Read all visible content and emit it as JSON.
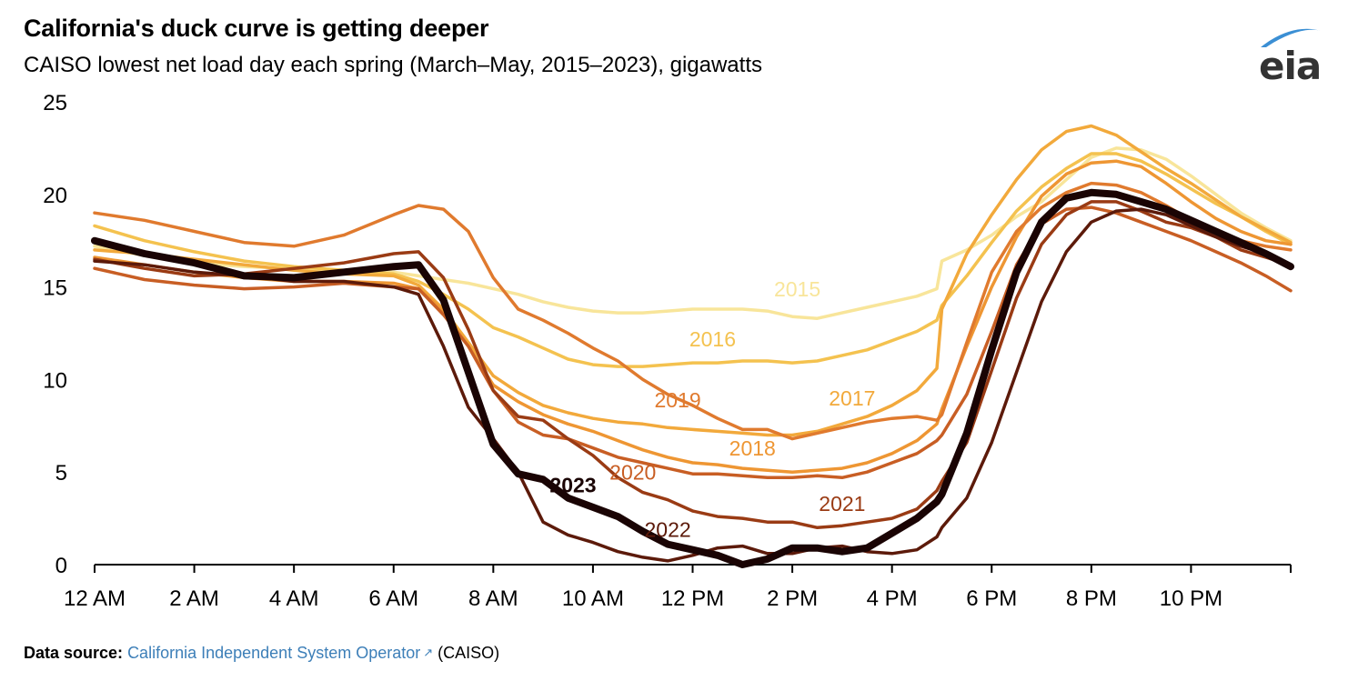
{
  "header": {
    "title": "California's duck curve is getting deeper",
    "subtitle": "CAISO lowest net load day each spring (March–May, 2015–2023), gigawatts"
  },
  "logo": {
    "text": "eia",
    "arc_color": "#3b8fd4"
  },
  "footer": {
    "label": "Data source:",
    "link_text": "California Independent System Operator",
    "external_icon": "external-link-icon",
    "suffix": "(CAISO)"
  },
  "chart_data": {
    "type": "line",
    "title": "California's duck curve is getting deeper",
    "subtitle": "CAISO lowest net load day each spring (March–May, 2015–2023), gigawatts",
    "xlabel": "",
    "ylabel": "gigawatts",
    "xlim": [
      0,
      24
    ],
    "ylim": [
      0,
      25
    ],
    "grid": false,
    "legend": "inline-labels",
    "x_ticks": [
      {
        "value": 0,
        "label": "12 AM"
      },
      {
        "value": 2,
        "label": "2 AM"
      },
      {
        "value": 4,
        "label": "4 AM"
      },
      {
        "value": 6,
        "label": "6 AM"
      },
      {
        "value": 8,
        "label": "8 AM"
      },
      {
        "value": 10,
        "label": "10 AM"
      },
      {
        "value": 12,
        "label": "12 PM"
      },
      {
        "value": 14,
        "label": "2 PM"
      },
      {
        "value": 16,
        "label": "4 PM"
      },
      {
        "value": 18,
        "label": "6 PM"
      },
      {
        "value": 20,
        "label": "8 PM"
      },
      {
        "value": 22,
        "label": "10 PM"
      },
      {
        "value": 24,
        "label": ""
      }
    ],
    "y_ticks": [
      {
        "value": 0,
        "label": "0"
      },
      {
        "value": 5,
        "label": "5"
      },
      {
        "value": 10,
        "label": "10"
      },
      {
        "value": 15,
        "label": "15"
      },
      {
        "value": 20,
        "label": "20"
      },
      {
        "value": 25,
        "label": "25"
      }
    ],
    "x": [
      0,
      1,
      2,
      3,
      4,
      5,
      6,
      6.5,
      7,
      7.5,
      8,
      8.5,
      9,
      9.5,
      10,
      10.5,
      11,
      11.5,
      12,
      12.5,
      13,
      13.5,
      14,
      14.5,
      15,
      15.5,
      16,
      16.5,
      16.9,
      17,
      17.5,
      18,
      18.5,
      19,
      19.5,
      20,
      20.5,
      21,
      21.5,
      22,
      22.5,
      23,
      23.5,
      24
    ],
    "series": [
      {
        "name": "2015",
        "color": "#f8e59a",
        "bold": false,
        "label_at": [
          14.1,
          14.5
        ],
        "values": [
          17.2,
          16.7,
          16.3,
          16.1,
          16.0,
          15.9,
          15.8,
          15.6,
          15.4,
          15.2,
          14.9,
          14.6,
          14.2,
          13.9,
          13.7,
          13.6,
          13.6,
          13.7,
          13.8,
          13.8,
          13.8,
          13.7,
          13.4,
          13.3,
          13.6,
          13.9,
          14.2,
          14.5,
          14.9,
          16.4,
          17.0,
          17.8,
          18.8,
          19.6,
          20.8,
          22.0,
          22.5,
          22.4,
          21.9,
          21.0,
          20.0,
          19.0,
          18.2,
          17.5
        ]
      },
      {
        "name": "2016",
        "color": "#f4c24f",
        "bold": false,
        "label_at": [
          12.4,
          11.8
        ],
        "values": [
          18.3,
          17.5,
          16.9,
          16.4,
          16.1,
          15.9,
          15.7,
          15.3,
          14.6,
          13.8,
          12.8,
          12.3,
          11.7,
          11.1,
          10.8,
          10.7,
          10.7,
          10.8,
          10.9,
          10.9,
          11.0,
          11.0,
          10.9,
          11.0,
          11.3,
          11.6,
          12.1,
          12.6,
          13.2,
          14.0,
          15.6,
          17.4,
          19.1,
          20.4,
          21.4,
          22.2,
          22.2,
          21.8,
          21.1,
          20.3,
          19.5,
          18.8,
          18.0,
          17.3
        ]
      },
      {
        "name": "2017",
        "color": "#f2a93b",
        "bold": false,
        "label_at": [
          15.2,
          8.6
        ],
        "values": [
          17.0,
          16.8,
          16.5,
          16.2,
          15.9,
          15.7,
          15.6,
          15.1,
          13.8,
          12.0,
          10.2,
          9.3,
          8.6,
          8.2,
          7.9,
          7.7,
          7.6,
          7.4,
          7.3,
          7.2,
          7.1,
          7.0,
          7.0,
          7.2,
          7.6,
          8.0,
          8.6,
          9.4,
          10.6,
          13.8,
          16.8,
          18.9,
          20.8,
          22.4,
          23.4,
          23.7,
          23.2,
          22.3,
          21.4,
          20.6,
          19.7,
          18.8,
          18.1,
          17.4
        ]
      },
      {
        "name": "2018",
        "color": "#ee9633",
        "bold": false,
        "label_at": [
          13.2,
          5.9
        ],
        "values": [
          16.6,
          16.2,
          15.8,
          15.5,
          15.3,
          15.3,
          15.2,
          14.9,
          13.7,
          11.8,
          9.7,
          8.8,
          8.1,
          7.6,
          7.2,
          6.7,
          6.2,
          5.8,
          5.5,
          5.4,
          5.2,
          5.1,
          5.0,
          5.1,
          5.2,
          5.5,
          6.0,
          6.7,
          7.6,
          8.4,
          11.8,
          15.0,
          17.7,
          19.9,
          21.1,
          21.7,
          21.8,
          21.5,
          20.6,
          19.6,
          18.7,
          18.0,
          17.5,
          17.3
        ]
      },
      {
        "name": "2019",
        "color": "#e07a2e",
        "bold": false,
        "label_at": [
          11.7,
          8.5
        ],
        "values": [
          19.0,
          18.6,
          18.0,
          17.4,
          17.2,
          17.8,
          18.9,
          19.4,
          19.2,
          18.0,
          15.5,
          13.8,
          13.2,
          12.5,
          11.7,
          11.0,
          10.0,
          9.2,
          8.6,
          7.9,
          7.3,
          7.3,
          6.8,
          7.1,
          7.4,
          7.7,
          7.9,
          8.0,
          7.8,
          8.1,
          12.0,
          15.8,
          18.0,
          19.3,
          20.1,
          20.6,
          20.5,
          20.1,
          19.4,
          18.6,
          18.0,
          17.5,
          17.2,
          17.0
        ]
      },
      {
        "name": "2020",
        "color": "#c85e24",
        "bold": false,
        "label_at": [
          10.8,
          4.6
        ],
        "values": [
          16.0,
          15.4,
          15.1,
          14.9,
          15.0,
          15.2,
          15.0,
          14.9,
          13.5,
          11.8,
          9.4,
          7.7,
          7.0,
          6.8,
          6.3,
          5.8,
          5.5,
          5.2,
          4.9,
          4.9,
          4.8,
          4.7,
          4.7,
          4.8,
          4.7,
          5.0,
          5.5,
          6.0,
          6.7,
          7.0,
          9.2,
          12.6,
          16.2,
          18.4,
          19.2,
          19.3,
          19.0,
          18.5,
          18.0,
          17.5,
          16.9,
          16.3,
          15.6,
          14.8
        ]
      },
      {
        "name": "2021",
        "color": "#9a3b14",
        "bold": false,
        "label_at": [
          15.0,
          2.9
        ],
        "values": [
          16.5,
          16.0,
          15.6,
          15.7,
          16.0,
          16.3,
          16.8,
          16.9,
          15.5,
          12.7,
          9.4,
          8.0,
          7.8,
          6.8,
          5.9,
          4.7,
          3.9,
          3.5,
          2.9,
          2.6,
          2.5,
          2.3,
          2.3,
          2.0,
          2.1,
          2.3,
          2.5,
          3.0,
          4.0,
          4.5,
          6.6,
          10.5,
          14.4,
          17.3,
          18.9,
          19.6,
          19.6,
          19.1,
          18.5,
          18.2,
          17.7,
          17.0,
          16.6,
          16.2
        ]
      },
      {
        "name": "2022",
        "color": "#5c1a0a",
        "bold": false,
        "label_at": [
          11.5,
          1.5
        ],
        "values": [
          16.4,
          16.2,
          15.8,
          15.6,
          15.3,
          15.3,
          15.0,
          14.6,
          11.8,
          8.5,
          6.8,
          5.0,
          2.3,
          1.6,
          1.2,
          0.7,
          0.4,
          0.2,
          0.5,
          0.9,
          1.0,
          0.6,
          0.6,
          0.9,
          1.0,
          0.7,
          0.6,
          0.8,
          1.5,
          2.0,
          3.6,
          6.6,
          10.4,
          14.2,
          16.9,
          18.5,
          19.1,
          19.2,
          18.9,
          18.3,
          17.7,
          17.2,
          16.8,
          16.1
        ]
      },
      {
        "name": "2023",
        "color": "#1a0404",
        "bold": true,
        "label_at": [
          9.6,
          3.9
        ],
        "values": [
          17.5,
          16.8,
          16.3,
          15.6,
          15.5,
          15.8,
          16.1,
          16.2,
          14.3,
          10.4,
          6.5,
          4.9,
          4.6,
          3.6,
          3.1,
          2.6,
          1.8,
          1.1,
          0.8,
          0.5,
          0.0,
          0.3,
          0.9,
          0.9,
          0.7,
          0.9,
          1.7,
          2.5,
          3.4,
          3.8,
          7.1,
          11.6,
          15.8,
          18.5,
          19.8,
          20.1,
          20.0,
          19.6,
          19.2,
          18.6,
          18.0,
          17.4,
          16.8,
          16.1
        ]
      }
    ]
  }
}
